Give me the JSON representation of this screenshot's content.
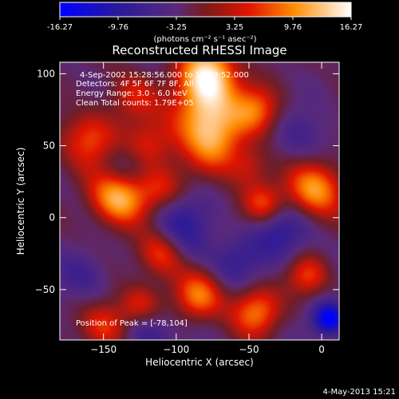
{
  "chart_data": {
    "type": "heatmap",
    "title": "Reconstructed RHESSI Image",
    "xlabel": "Heliocentric X (arcsec)",
    "ylabel": "Heliocentric Y (arcsec)",
    "xlim": [
      -180,
      12
    ],
    "ylim": [
      -85,
      108
    ],
    "x_ticks": [
      -150,
      -100,
      -50,
      0
    ],
    "y_ticks": [
      -50,
      0,
      50,
      100
    ],
    "colorbar": {
      "ticks": [
        "-16.27",
        "-9.76",
        "-3.25",
        "3.25",
        "9.76",
        "16.27"
      ],
      "range": [
        -16.27,
        16.27
      ],
      "units_label": "(photons cm⁻² s⁻¹ asec⁻²)"
    },
    "annotations": [
      "4-Sep-2002 15:28:56.000 to 15:29:52.000",
      "Detectors: 4F 5F 6F 7F 8F, All",
      "Energy Range: 3.0 - 6.0 keV",
      "Clean    Total counts: 1.79E+05"
    ],
    "peak_label": "Position of Peak = [-78,104]",
    "peak": [
      -78,
      104
    ],
    "blobs": [
      {
        "x": -78,
        "y": 100,
        "v": 16.0,
        "s": 14
      },
      {
        "x": -82,
        "y": 72,
        "v": 13.0,
        "s": 16
      },
      {
        "x": -72,
        "y": 50,
        "v": 9.0,
        "s": 14
      },
      {
        "x": -140,
        "y": 15,
        "v": 15.0,
        "s": 14
      },
      {
        "x": -160,
        "y": 55,
        "v": 9.0,
        "s": 14
      },
      {
        "x": -120,
        "y": 50,
        "v": 8.0,
        "s": 12
      },
      {
        "x": -110,
        "y": 20,
        "v": 7.0,
        "s": 12
      },
      {
        "x": -45,
        "y": 75,
        "v": 10.0,
        "s": 12
      },
      {
        "x": -5,
        "y": 20,
        "v": 13.0,
        "s": 14
      },
      {
        "x": -40,
        "y": 10,
        "v": 9.0,
        "s": 10
      },
      {
        "x": -110,
        "y": -25,
        "v": 10.0,
        "s": 12
      },
      {
        "x": -85,
        "y": -55,
        "v": 11.0,
        "s": 12
      },
      {
        "x": -45,
        "y": -65,
        "v": 11.0,
        "s": 12
      },
      {
        "x": -10,
        "y": -40,
        "v": 8.0,
        "s": 10
      },
      {
        "x": -150,
        "y": -75,
        "v": 9.0,
        "s": 12
      },
      {
        "x": -125,
        "y": -60,
        "v": 7.0,
        "s": 10
      },
      {
        "x": -130,
        "y": 85,
        "v": 6.0,
        "s": 12
      },
      {
        "x": -50,
        "y": 35,
        "v": 6.0,
        "s": 10
      },
      {
        "x": -100,
        "y": 0,
        "v": -6.0,
        "s": 14
      },
      {
        "x": -95,
        "y": -20,
        "v": -4.0,
        "s": 12
      },
      {
        "x": -30,
        "y": -10,
        "v": -7.0,
        "s": 14
      },
      {
        "x": -15,
        "y": 55,
        "v": -4.0,
        "s": 14
      },
      {
        "x": -135,
        "y": 35,
        "v": -5.0,
        "s": 12
      },
      {
        "x": -120,
        "y": -80,
        "v": -6.0,
        "s": 12
      },
      {
        "x": 5,
        "y": -70,
        "v": -14.0,
        "s": 8
      },
      {
        "x": -165,
        "y": -40,
        "v": -5.0,
        "s": 12
      },
      {
        "x": -60,
        "y": -30,
        "v": -5.0,
        "s": 12
      }
    ]
  },
  "footer": {
    "timestamp": "4-May-2013 15:21"
  }
}
